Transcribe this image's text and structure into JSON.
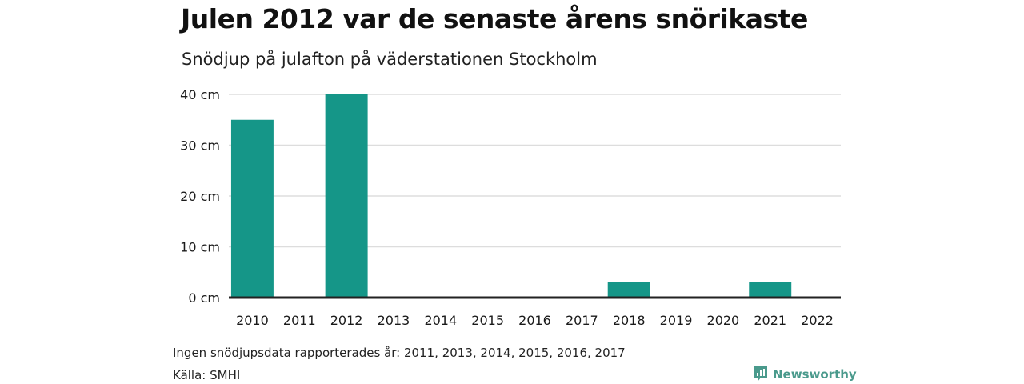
{
  "title": "Julen 2012 var de senaste årens snörikaste",
  "subtitle": "Snödjup på julafton på väderstationen Stockholm",
  "footnote": "Ingen snödjupsdata rapporterades år: 2011, 2013, 2014, 2015, 2016, 2017",
  "source": "Källa: SMHI",
  "brand": "Newsworthy",
  "colors": {
    "bar": "#159688",
    "grid": "#dddddd",
    "baseline": "#222222",
    "brand": "#4a9a8c"
  },
  "chart_data": {
    "type": "bar",
    "categories": [
      "2010",
      "2011",
      "2012",
      "2013",
      "2014",
      "2015",
      "2016",
      "2017",
      "2018",
      "2019",
      "2020",
      "2021",
      "2022"
    ],
    "values": [
      35,
      null,
      40,
      null,
      null,
      null,
      null,
      null,
      3,
      0,
      0,
      3,
      0
    ],
    "ylim": [
      0,
      40
    ],
    "yticks": [
      0,
      10,
      20,
      30,
      40
    ],
    "ytick_labels": [
      "0 cm",
      "10 cm",
      "20 cm",
      "30 cm",
      "40 cm"
    ],
    "grid": true,
    "legend": "none"
  }
}
